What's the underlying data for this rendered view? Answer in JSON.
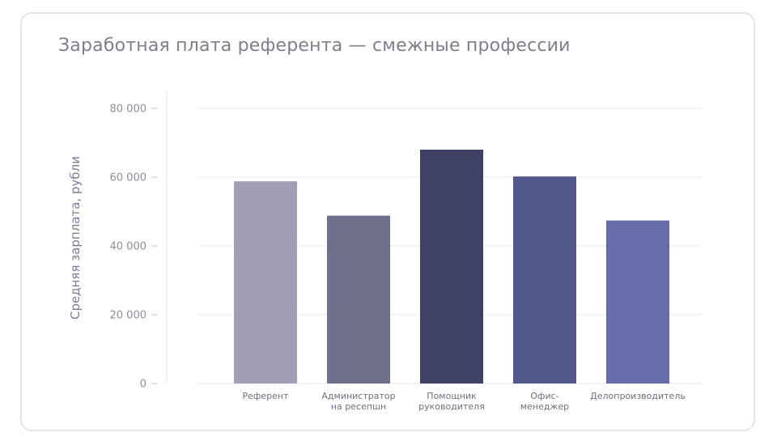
{
  "chart_data": {
    "type": "bar",
    "title": "Заработная плата референта — смежные профессии",
    "ylabel": "Средняя зарплата, рубли",
    "xlabel": "",
    "categories": [
      [
        "Референт"
      ],
      [
        "Администратор",
        "на ресепшн"
      ],
      [
        "Помощник",
        "руководителя"
      ],
      [
        "Офис-",
        "менеджер"
      ],
      [
        "Делопроизводитель"
      ]
    ],
    "values": [
      58800,
      48800,
      68000,
      60200,
      47400
    ],
    "ylim": [
      0,
      80000
    ],
    "yticks": [
      0,
      20000,
      40000,
      60000,
      80000
    ],
    "ytick_labels": [
      "0",
      "20 000",
      "40 000",
      "60 000",
      "80 000"
    ],
    "bar_colors": [
      "#a09fb5",
      "#6e6f8a",
      "#3e4065",
      "#525889",
      "#666ca9"
    ],
    "grid": true,
    "legend": "none"
  }
}
